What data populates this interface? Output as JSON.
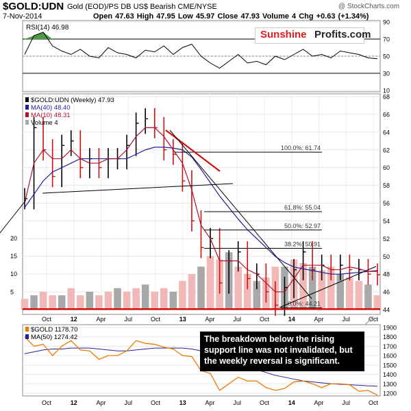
{
  "header": {
    "symbol": "$GOLD:UDN",
    "description": "Gold (EOD)/PS DB US$ Bearish  CME/NYSE",
    "credit": "@ StockCharts.com",
    "date": "7-Nov-2014",
    "ohlc_line": "Open 47.63  High 47.95  Low 45.97  Close 47.93  Volume 4  Chg +0.63 (+1.34%)"
  },
  "brand": {
    "part1": "Sunshine",
    "part2": "Profits.com"
  },
  "note": "The breakdown below the rising support line was not invalidated, but the weekly reversal is significant.",
  "colors": {
    "price_bars": "#000000",
    "ma40": "#1f1f9a",
    "ma10": "#b01030",
    "volume_bars": "#f2b8b8",
    "volume_bars_dark": "#a8a8a8",
    "rsi_line": "#000000",
    "rsi_overbought_fill": "#4e9a44",
    "rsi_oversold_fill": "#a85858",
    "trend_red": "#cc1111",
    "support_red": "#cc0000",
    "gold_line": "#f07800",
    "ma50_gold": "#1f1f9a"
  },
  "chart_data": [
    {
      "type": "line",
      "panel": "rsi",
      "legend": "RSI(14) 46.98",
      "ylim": [
        10,
        90
      ],
      "y_ticks": [
        10,
        30,
        50,
        70,
        90
      ],
      "grid": true,
      "bands": [
        30,
        70
      ],
      "x": [
        "2011-09",
        "2011-10",
        "2011-11",
        "2011-12",
        "2012-01",
        "2012-02",
        "2012-03",
        "2012-04",
        "2012-05",
        "2012-06",
        "2012-07",
        "2012-08",
        "2012-09",
        "2012-10",
        "2012-11",
        "2012-12",
        "2013-01",
        "2013-02",
        "2013-03",
        "2013-04",
        "2013-05",
        "2013-06",
        "2013-07",
        "2013-08",
        "2013-09",
        "2013-10",
        "2013-11",
        "2013-12",
        "2014-01",
        "2014-02",
        "2014-03",
        "2014-04",
        "2014-05",
        "2014-06",
        "2014-07",
        "2014-08",
        "2014-09",
        "2014-10",
        "2014-11"
      ],
      "series": [
        {
          "values": [
            52,
            74,
            78,
            62,
            56,
            52,
            58,
            50,
            48,
            60,
            54,
            52,
            48,
            57,
            55,
            62,
            52,
            60,
            64,
            50,
            42,
            36,
            44,
            52,
            42,
            44,
            40,
            50,
            46,
            52,
            58,
            50,
            52,
            48,
            56,
            54,
            52,
            48,
            47
          ]
        }
      ]
    },
    {
      "type": "line",
      "panel": "price",
      "legend": [
        "$GOLD:UDN (Weekly) 47.93",
        "MA(40) 48.40",
        "MA(10) 48.31",
        "Volume 4"
      ],
      "ylim": [
        44,
        68
      ],
      "y_ticks": [
        44,
        46,
        48,
        50,
        52,
        54,
        56,
        58,
        60,
        62,
        64,
        66,
        68
      ],
      "volume_ticks": [
        5,
        10,
        15,
        20
      ],
      "x_ticks": [
        "Oct",
        "12",
        "Apr",
        "Jul",
        "Oct",
        "13",
        "Apr",
        "Jul",
        "Oct",
        "14",
        "Apr",
        "Jul",
        "Oct"
      ],
      "x": [
        "2011-09",
        "2011-10",
        "2011-11",
        "2011-12",
        "2012-01",
        "2012-02",
        "2012-03",
        "2012-04",
        "2012-05",
        "2012-06",
        "2012-07",
        "2012-08",
        "2012-09",
        "2012-10",
        "2012-11",
        "2012-12",
        "2013-01",
        "2013-02",
        "2013-03",
        "2013-04",
        "2013-05",
        "2013-06",
        "2013-07",
        "2013-08",
        "2013-09",
        "2013-10",
        "2013-11",
        "2013-12",
        "2014-01",
        "2014-02",
        "2014-03",
        "2014-04",
        "2014-05",
        "2014-06",
        "2014-07",
        "2014-08",
        "2014-09",
        "2014-10",
        "2014-11"
      ],
      "series": [
        {
          "name": "$GOLD:UDN (Weekly)",
          "values": [
            56.5,
            64.5,
            62,
            59,
            62.5,
            63,
            60,
            61,
            60,
            61,
            61,
            62.5,
            65,
            65.5,
            64.5,
            62,
            61.5,
            58.5,
            54,
            51,
            52,
            47,
            49.5,
            50.5,
            47.5,
            48,
            46,
            44.5,
            46.5,
            48.5,
            50.5,
            48.5,
            49,
            48.5,
            49,
            48.5,
            48.5,
            48,
            47.93
          ]
        },
        {
          "name": "MA(40)",
          "values": [
            55.5,
            57,
            58.5,
            59.5,
            60,
            60.5,
            61,
            61,
            61,
            61,
            61,
            61,
            61.5,
            62,
            62.3,
            62.3,
            62.2,
            62,
            61.2,
            59.8,
            58.3,
            56.8,
            55.5,
            54.2,
            53,
            52,
            51,
            50,
            49.3,
            48.8,
            48.6,
            48.4,
            48.2,
            48,
            48,
            48.1,
            48.2,
            48.3,
            48.4
          ]
        },
        {
          "name": "MA(10)",
          "values": [
            56,
            60.5,
            62,
            61,
            61,
            62,
            61,
            60.5,
            60.5,
            61,
            61,
            62,
            63.5,
            64.5,
            64.5,
            63.5,
            62,
            60.5,
            57.5,
            53.5,
            52,
            49.5,
            49.5,
            49.5,
            48.5,
            48,
            47,
            46,
            46,
            47.5,
            49,
            49,
            49,
            48.5,
            48.5,
            48.8,
            48.6,
            48.3,
            48.31
          ]
        }
      ],
      "volume": [
        3,
        4,
        5,
        4,
        4,
        6,
        4,
        5,
        4,
        5,
        6,
        5,
        6,
        7,
        5,
        6,
        5,
        8,
        10,
        12,
        15,
        14,
        16,
        12,
        10,
        8,
        9,
        12,
        12,
        14,
        13,
        12,
        11,
        12,
        10,
        9,
        8,
        7,
        4
      ],
      "annotations": [
        "100.0%: 61.74",
        "61.8%: 55.04",
        "50.0%: 52.97",
        "38.2%: 50.91",
        "0.0%: 44.21"
      ],
      "fibonacci_levels": [
        61.74,
        55.04,
        52.97,
        50.91,
        44.21
      ],
      "support_level": 44.21
    },
    {
      "type": "line",
      "panel": "gold",
      "legend": [
        "$GOLD 1178.70",
        "MA(50) 1274.42"
      ],
      "ylim": [
        1200,
        1900
      ],
      "y_ticks": [
        1200,
        1300,
        1400,
        1500,
        1600,
        1700,
        1800,
        1900
      ],
      "x_ticks": [
        "Oct",
        "12",
        "Apr",
        "Jul",
        "Oct",
        "13",
        "Apr",
        "Jul",
        "Oct",
        "14",
        "Apr",
        "Jul",
        "Oct"
      ],
      "x": [
        "2011-09",
        "2011-10",
        "2011-11",
        "2011-12",
        "2012-01",
        "2012-02",
        "2012-03",
        "2012-04",
        "2012-05",
        "2012-06",
        "2012-07",
        "2012-08",
        "2012-09",
        "2012-10",
        "2012-11",
        "2012-12",
        "2013-01",
        "2013-02",
        "2013-03",
        "2013-04",
        "2013-05",
        "2013-06",
        "2013-07",
        "2013-08",
        "2013-09",
        "2013-10",
        "2013-11",
        "2013-12",
        "2014-01",
        "2014-02",
        "2014-03",
        "2014-04",
        "2014-05",
        "2014-06",
        "2014-07",
        "2014-08",
        "2014-09",
        "2014-10",
        "2014-11"
      ],
      "series": [
        {
          "name": "$GOLD",
          "values": [
            1800,
            1700,
            1720,
            1600,
            1700,
            1760,
            1660,
            1650,
            1560,
            1600,
            1600,
            1650,
            1760,
            1730,
            1720,
            1690,
            1670,
            1600,
            1590,
            1440,
            1410,
            1230,
            1300,
            1370,
            1330,
            1330,
            1260,
            1230,
            1250,
            1320,
            1330,
            1300,
            1260,
            1300,
            1300,
            1290,
            1220,
            1230,
            1178.7
          ]
        },
        {
          "name": "MA(50)",
          "values": [
            1620,
            1640,
            1660,
            1670,
            1670,
            1680,
            1680,
            1680,
            1670,
            1660,
            1650,
            1650,
            1660,
            1670,
            1680,
            1680,
            1680,
            1680,
            1670,
            1650,
            1620,
            1590,
            1550,
            1520,
            1480,
            1450,
            1420,
            1390,
            1370,
            1350,
            1330,
            1320,
            1310,
            1300,
            1295,
            1290,
            1285,
            1278,
            1274.42
          ]
        }
      ]
    }
  ]
}
